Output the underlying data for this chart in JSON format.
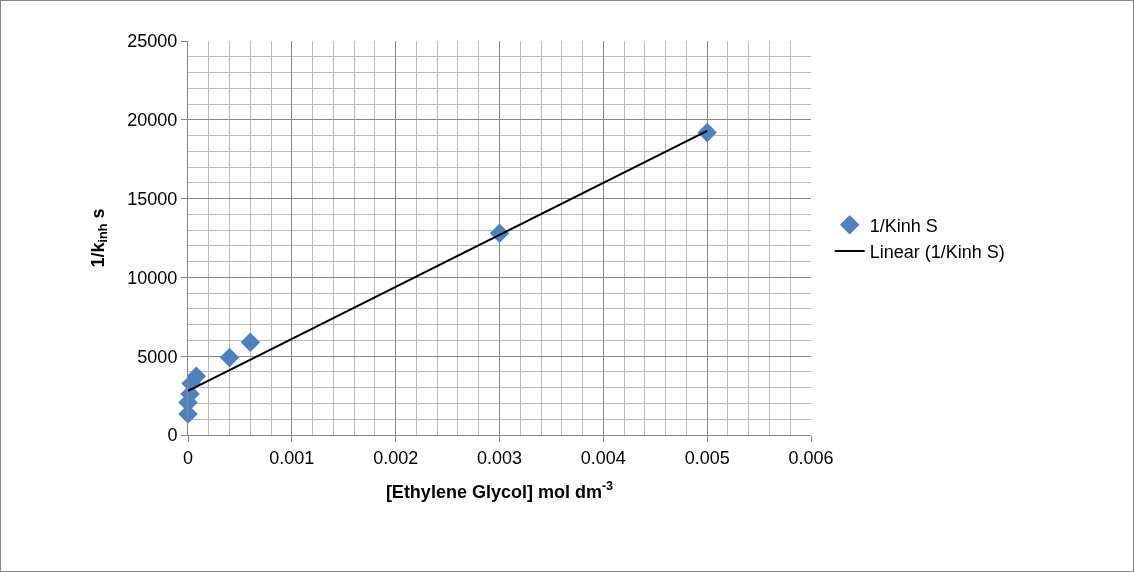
{
  "chart_data": {
    "type": "scatter",
    "xlabel": "[Ethylene Glycol] mol dm$^{-3}$",
    "ylabel": "1/k$_{inh}$ s",
    "series": [
      {
        "name": "1/Kinh S",
        "color": "#4f81bd",
        "marker": "diamond",
        "x": [
          0,
          0,
          2e-05,
          3e-05,
          8e-05,
          0.0004,
          0.0006,
          0.003,
          0.005
        ],
        "values": [
          1330,
          2070,
          2600,
          3270,
          3720,
          4920,
          5880,
          12800,
          19200
        ]
      },
      {
        "name": "Linear (1/Kinh S)",
        "type": "line",
        "color": "#000000",
        "marker": "none",
        "line_style": "solid",
        "x": [
          0,
          0.005
        ],
        "values": [
          2800,
          19300
        ]
      }
    ],
    "xlim": [
      0,
      0.006
    ],
    "xticks": [
      0,
      0.001,
      0.002,
      0.003,
      0.004,
      0.005,
      0.006
    ],
    "ylim": [
      0,
      25000
    ],
    "yticks": [
      0,
      5000,
      10000,
      15000,
      20000,
      25000
    ],
    "grid": true,
    "legend": "right"
  }
}
